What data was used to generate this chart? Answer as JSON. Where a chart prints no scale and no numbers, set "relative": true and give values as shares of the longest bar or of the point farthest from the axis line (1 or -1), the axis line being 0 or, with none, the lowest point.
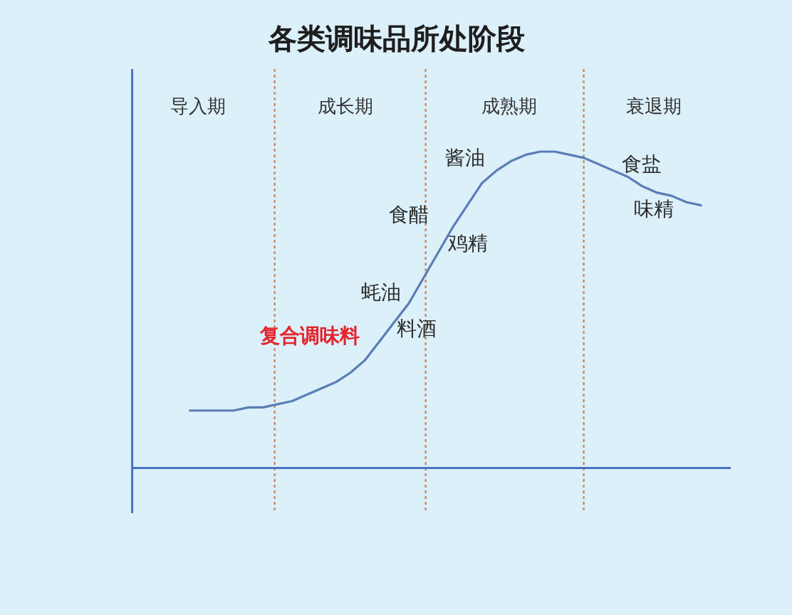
{
  "chart_data": {
    "type": "line",
    "title": "各类调味品所处阶段",
    "relative": true,
    "grid": "x",
    "categories": [
      null,
      null,
      null,
      null,
      null,
      null,
      null,
      null,
      null,
      null,
      null,
      null,
      null,
      null,
      null,
      null,
      null,
      null,
      null,
      null,
      null,
      null,
      null,
      null,
      null,
      null,
      null,
      null,
      null,
      null,
      null,
      null,
      null,
      null,
      null,
      null,
      null,
      null,
      null,
      null,
      null,
      null
    ],
    "series": [
      {
        "color": "#5a7db5",
        "values": [
          null,
          null,
          null,
          null,
          0.18,
          0.18,
          0.18,
          0.18,
          0.19,
          0.19,
          0.2,
          0.21,
          0.23,
          0.25,
          0.27,
          0.3,
          0.34,
          0.4,
          0.46,
          0.52,
          0.6,
          0.68,
          0.76,
          0.83,
          0.9,
          0.94,
          0.97,
          0.99,
          1,
          1,
          0.99,
          0.98,
          0.96,
          0.94,
          0.92,
          0.89,
          0.87,
          0.86,
          0.84,
          0.83,
          null,
          null
        ]
      }
    ],
    "annotations": [
      "导入期",
      "成长期",
      "成熟期",
      "衰退期",
      "酱油",
      "食醋",
      "鸡精",
      "蚝油",
      "料酒",
      "复合调味料",
      "食盐",
      "味精"
    ]
  }
}
